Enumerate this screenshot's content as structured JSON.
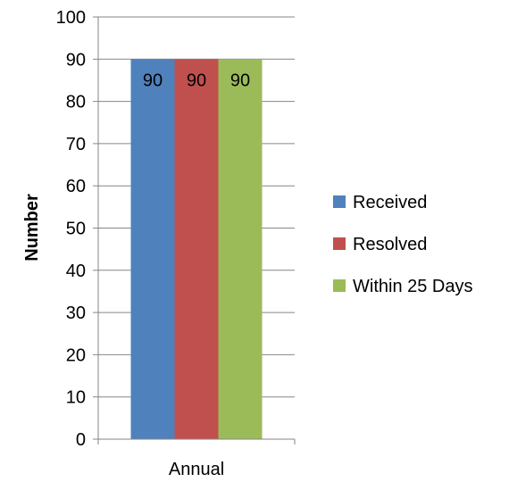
{
  "chart_data": {
    "type": "bar",
    "categories": [
      "Annual"
    ],
    "series": [
      {
        "name": "Received",
        "values": [
          90
        ],
        "color": "#4f81bd"
      },
      {
        "name": "Resolved",
        "values": [
          90
        ],
        "color": "#c0504d"
      },
      {
        "name": "Within 25 Days",
        "values": [
          90
        ],
        "color": "#9bbb59"
      }
    ],
    "ylabel": "Number",
    "ylim": [
      0,
      100
    ],
    "yticks": [
      0,
      10,
      20,
      30,
      40,
      50,
      60,
      70,
      80,
      90,
      100
    ],
    "grid": true,
    "legend_position": "right",
    "data_labels": true
  }
}
